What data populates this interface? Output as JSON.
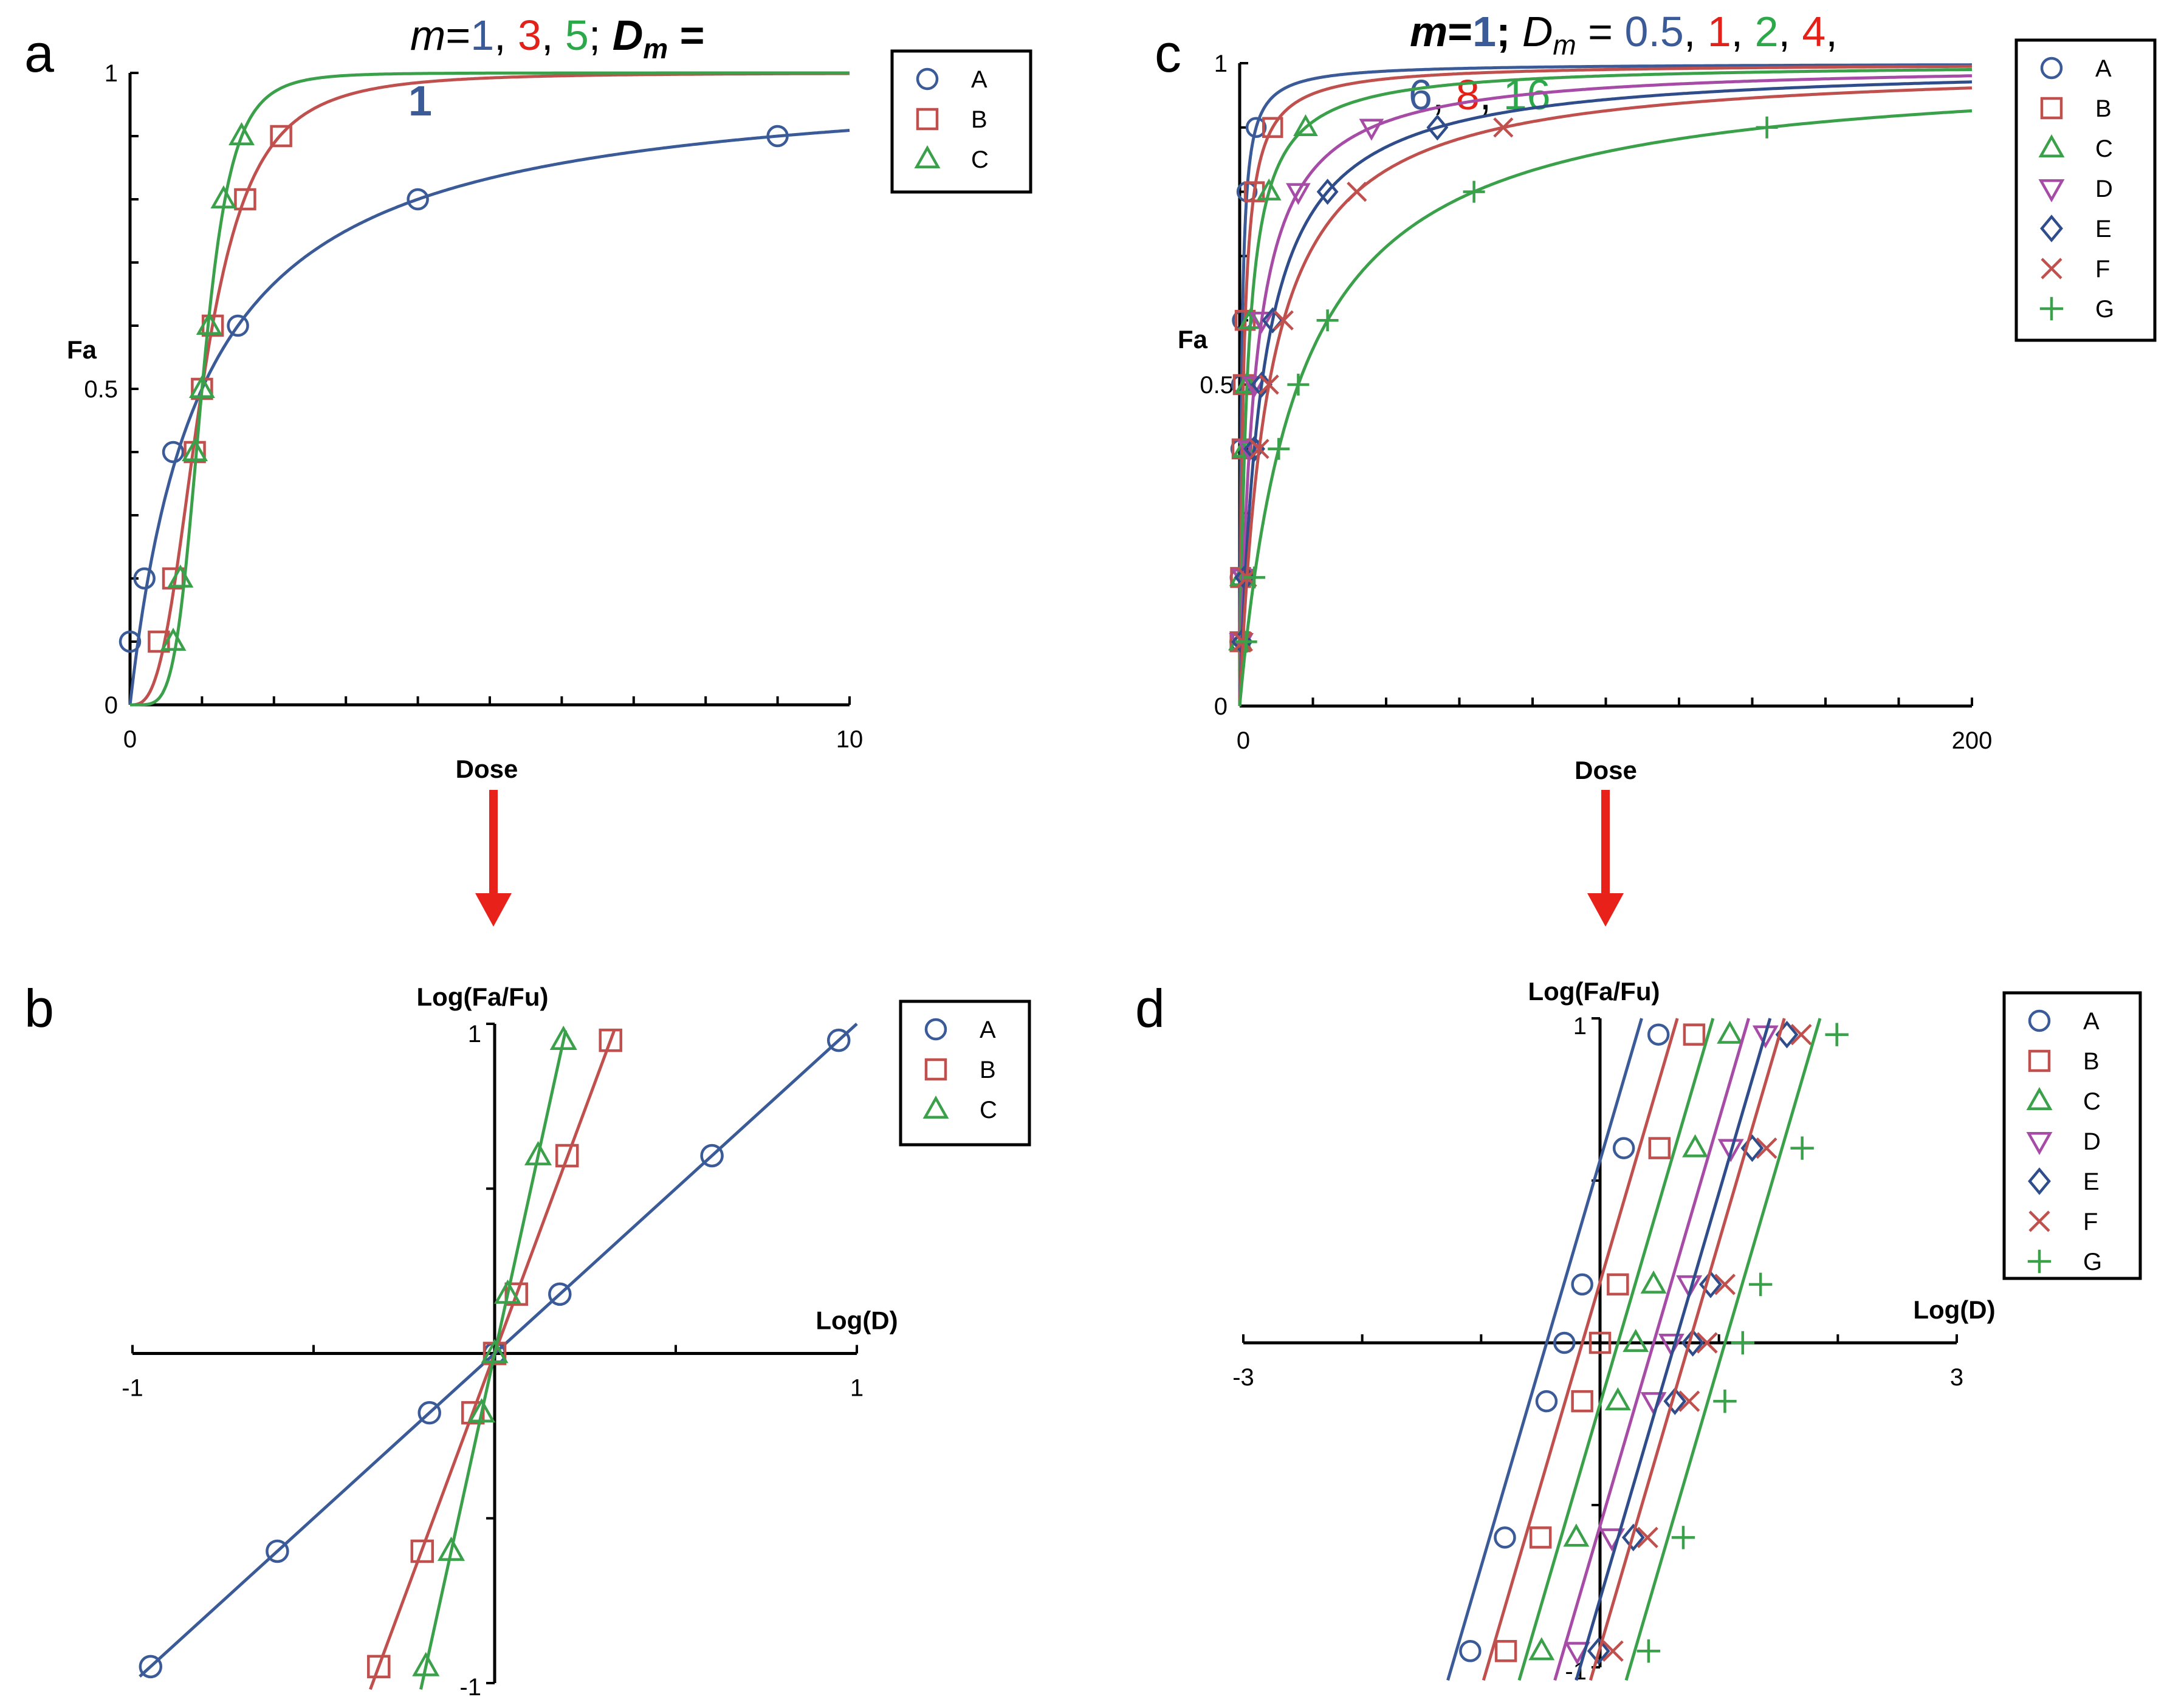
{
  "colors": {
    "A": "#3a5a98",
    "B": "#c0504d",
    "C": "#3aa04a",
    "D": "#a64ca6",
    "E": "#2e4d8a",
    "F": "#c0504d",
    "G": "#3aa04a",
    "arrow": "#e8221b",
    "title_blue": "#3a5a98",
    "title_red": "#e32119",
    "title_green": "#2aa84a"
  },
  "panels": {
    "a": {
      "letter": "a"
    },
    "b": {
      "letter": "b"
    },
    "c": {
      "letter": "c"
    },
    "d": {
      "letter": "d"
    }
  },
  "titles": {
    "a": {
      "m_label": "m",
      "eq": "=",
      "v1": "1",
      "sep": ", ",
      "v2": "3",
      "v3": "5",
      "semi": "; ",
      "dm": "D",
      "dm_sub": "m",
      "dm_eq": " =",
      "line2": "1"
    },
    "c": {
      "m_label": "m",
      "eq": "=",
      "m_val": "1",
      "semi": "; ",
      "dm": "D",
      "dm_sub": "m",
      "dm_eq": " = ",
      "v1": "0.5",
      "sep": ", ",
      "v2": "1",
      "v3": "2",
      "v4": "4",
      "trail": ",",
      "v5": "6",
      "v6": "8",
      "v7": "16"
    }
  },
  "chart_data": [
    {
      "panel": "a",
      "type": "line",
      "xlabel": "Dose",
      "ylabel": "Fa",
      "xlim": [
        0,
        10
      ],
      "ylim": [
        0,
        1
      ],
      "xticklabels": [
        "0",
        "10"
      ],
      "yticklabels": [
        "0",
        "0.5",
        "1"
      ],
      "legend": [
        "A",
        "B",
        "C"
      ],
      "legend_position": "top-right",
      "series": [
        {
          "name": "A",
          "m": 1,
          "Dm": 1,
          "marker": "circle",
          "points": [
            [
              0,
              0.1
            ],
            [
              0.2,
              0.2
            ],
            [
              0.6,
              0.4
            ],
            [
              1.5,
              0.6
            ],
            [
              4,
              0.8
            ],
            [
              9,
              0.9
            ]
          ]
        },
        {
          "name": "B",
          "m": 3,
          "Dm": 1,
          "marker": "square",
          "points": [
            [
              0.4,
              0.1
            ],
            [
              0.6,
              0.2
            ],
            [
              0.9,
              0.4
            ],
            [
              1.0,
              0.5
            ],
            [
              1.15,
              0.6
            ],
            [
              1.6,
              0.8
            ],
            [
              2.1,
              0.9
            ]
          ]
        },
        {
          "name": "C",
          "m": 5,
          "Dm": 1,
          "marker": "triangle",
          "points": [
            [
              0.6,
              0.1
            ],
            [
              0.7,
              0.2
            ],
            [
              0.9,
              0.4
            ],
            [
              1.0,
              0.5
            ],
            [
              1.1,
              0.6
            ],
            [
              1.3,
              0.8
            ],
            [
              1.55,
              0.9
            ]
          ]
        }
      ]
    },
    {
      "panel": "b",
      "type": "line",
      "xlabel": "Log(D)",
      "ylabel": "Log(Fa/Fu)",
      "xlim": [
        -1,
        1
      ],
      "ylim": [
        -1,
        1
      ],
      "xticklabels": [
        "-1",
        "1"
      ],
      "yticklabels": [
        "1",
        "-1"
      ],
      "legend": [
        "A",
        "B",
        "C"
      ],
      "legend_position": "top-right",
      "series": [
        {
          "name": "A",
          "marker": "circle",
          "points": [
            [
              -0.95,
              -0.95
            ],
            [
              -0.6,
              -0.6
            ],
            [
              -0.18,
              -0.18
            ],
            [
              0,
              0
            ],
            [
              0.18,
              0.18
            ],
            [
              0.6,
              0.6
            ],
            [
              0.95,
              0.95
            ]
          ]
        },
        {
          "name": "B",
          "marker": "square",
          "points": [
            [
              -0.32,
              -0.95
            ],
            [
              -0.2,
              -0.6
            ],
            [
              -0.06,
              -0.18
            ],
            [
              0,
              0
            ],
            [
              0.06,
              0.18
            ],
            [
              0.2,
              0.6
            ],
            [
              0.32,
              0.95
            ]
          ]
        },
        {
          "name": "C",
          "marker": "triangle",
          "points": [
            [
              -0.19,
              -0.95
            ],
            [
              -0.12,
              -0.6
            ],
            [
              -0.036,
              -0.18
            ],
            [
              0,
              0
            ],
            [
              0.036,
              0.18
            ],
            [
              0.12,
              0.6
            ],
            [
              0.19,
              0.95
            ]
          ]
        }
      ]
    },
    {
      "panel": "c",
      "type": "line",
      "xlabel": "Dose",
      "ylabel": "Fa",
      "xlim": [
        0,
        200
      ],
      "ylim": [
        0,
        1
      ],
      "xticklabels": [
        "0",
        "200"
      ],
      "yticklabels": [
        "0",
        "0.5",
        "1"
      ],
      "legend": [
        "A",
        "B",
        "C",
        "D",
        "E",
        "F",
        "G"
      ],
      "legend_position": "top-right",
      "series": [
        {
          "name": "A",
          "m": 1,
          "Dm": 0.5,
          "marker": "circle",
          "fa": [
            0.1,
            0.2,
            0.4,
            0.5,
            0.6,
            0.8,
            0.9
          ]
        },
        {
          "name": "B",
          "m": 1,
          "Dm": 1,
          "marker": "square",
          "fa": [
            0.1,
            0.2,
            0.4,
            0.5,
            0.6,
            0.8,
            0.9
          ]
        },
        {
          "name": "C",
          "m": 1,
          "Dm": 2,
          "marker": "triangle",
          "fa": [
            0.1,
            0.2,
            0.4,
            0.5,
            0.6,
            0.8,
            0.9
          ]
        },
        {
          "name": "D",
          "m": 1,
          "Dm": 4,
          "marker": "triangle-down",
          "fa": [
            0.1,
            0.2,
            0.4,
            0.5,
            0.6,
            0.8,
            0.9
          ]
        },
        {
          "name": "E",
          "m": 1,
          "Dm": 6,
          "marker": "diamond",
          "fa": [
            0.1,
            0.2,
            0.4,
            0.5,
            0.6,
            0.8,
            0.9
          ]
        },
        {
          "name": "F",
          "m": 1,
          "Dm": 8,
          "marker": "x",
          "fa": [
            0.1,
            0.2,
            0.4,
            0.5,
            0.6,
            0.8,
            0.9
          ]
        },
        {
          "name": "G",
          "m": 1,
          "Dm": 16,
          "marker": "plus",
          "fa": [
            0.1,
            0.2,
            0.4,
            0.5,
            0.6,
            0.8,
            0.9
          ]
        }
      ]
    },
    {
      "panel": "d",
      "type": "line",
      "xlabel": "Log(D)",
      "ylabel": "Log(Fa/Fu)",
      "xlim": [
        -3,
        3
      ],
      "ylim": [
        -1,
        1
      ],
      "xticklabels": [
        "-3",
        "3"
      ],
      "yticklabels": [
        "1",
        "-1"
      ],
      "legend": [
        "A",
        "B",
        "C",
        "D",
        "E",
        "F",
        "G"
      ],
      "legend_position": "top-right",
      "series": [
        {
          "name": "A",
          "marker": "circle",
          "log_dm": -0.3,
          "y": [
            -0.95,
            -0.6,
            -0.18,
            0,
            0.18,
            0.6,
            0.95
          ]
        },
        {
          "name": "B",
          "marker": "square",
          "log_dm": 0,
          "y": [
            -0.95,
            -0.6,
            -0.18,
            0,
            0.18,
            0.6,
            0.95
          ]
        },
        {
          "name": "C",
          "marker": "triangle",
          "log_dm": 0.3,
          "y": [
            -0.95,
            -0.6,
            -0.18,
            0,
            0.18,
            0.6,
            0.95
          ]
        },
        {
          "name": "D",
          "marker": "triangle-down",
          "log_dm": 0.6,
          "y": [
            -0.95,
            -0.6,
            -0.18,
            0,
            0.18,
            0.6,
            0.95
          ]
        },
        {
          "name": "E",
          "marker": "diamond",
          "log_dm": 0.78,
          "y": [
            -0.95,
            -0.6,
            -0.18,
            0,
            0.18,
            0.6,
            0.95
          ]
        },
        {
          "name": "F",
          "marker": "x",
          "log_dm": 0.9,
          "y": [
            -0.95,
            -0.6,
            -0.18,
            0,
            0.18,
            0.6,
            0.95
          ]
        },
        {
          "name": "G",
          "marker": "plus",
          "log_dm": 1.2,
          "y": [
            -0.95,
            -0.6,
            -0.18,
            0,
            0.18,
            0.6,
            0.95
          ]
        }
      ]
    }
  ]
}
